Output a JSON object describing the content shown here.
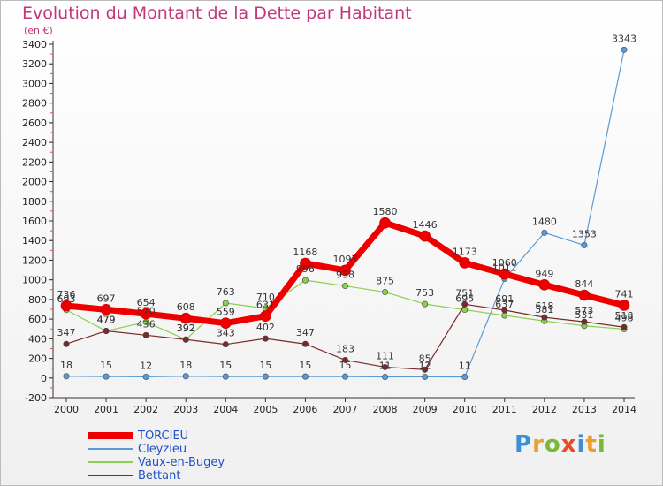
{
  "title": "Evolution du Montant de la Dette par Habitant",
  "unit": "(en €)",
  "logo": {
    "text": "Proxiti",
    "colors": [
      "#3a8fd8",
      "#e8a030",
      "#7ab83a",
      "#e84b2a",
      "#3a8fd8",
      "#e8a030",
      "#7ab83a"
    ]
  },
  "chart_data": {
    "type": "line",
    "x": [
      2000,
      2001,
      2002,
      2003,
      2004,
      2005,
      2006,
      2007,
      2008,
      2009,
      2010,
      2011,
      2012,
      2013,
      2014
    ],
    "ylim": [
      -200,
      3400
    ],
    "yticks": [
      -200,
      0,
      200,
      400,
      600,
      800,
      1000,
      1200,
      1400,
      1600,
      1800,
      2000,
      2200,
      2400,
      2600,
      2800,
      3000,
      3200,
      3400
    ],
    "grid": false,
    "legend_position": "bottom-left",
    "series": [
      {
        "name": "TORCIEU",
        "color": "#ee0000",
        "values": [
          736,
          697,
          654,
          608,
          559,
          631,
          1168,
          1097,
          1580,
          1446,
          1173,
          1060,
          949,
          844,
          741
        ]
      },
      {
        "name": "Cleyzieu",
        "color": "#5a9bd5",
        "values": [
          18,
          15,
          12,
          18,
          15,
          15,
          15,
          15,
          11,
          12,
          11,
          1011,
          1480,
          1353,
          3343
        ]
      },
      {
        "name": "Vaux-en-Bugey",
        "color": "#8ccf50",
        "values": [
          693,
          479,
          570,
          392,
          763,
          710,
          996,
          938,
          875,
          753,
          695,
          637,
          581,
          531,
          498
        ]
      },
      {
        "name": "Bettant",
        "color": "#7a2a2a",
        "values": [
          347,
          479,
          436,
          392,
          343,
          402,
          347,
          183,
          111,
          85,
          751,
          691,
          618,
          573,
          518
        ]
      }
    ]
  }
}
